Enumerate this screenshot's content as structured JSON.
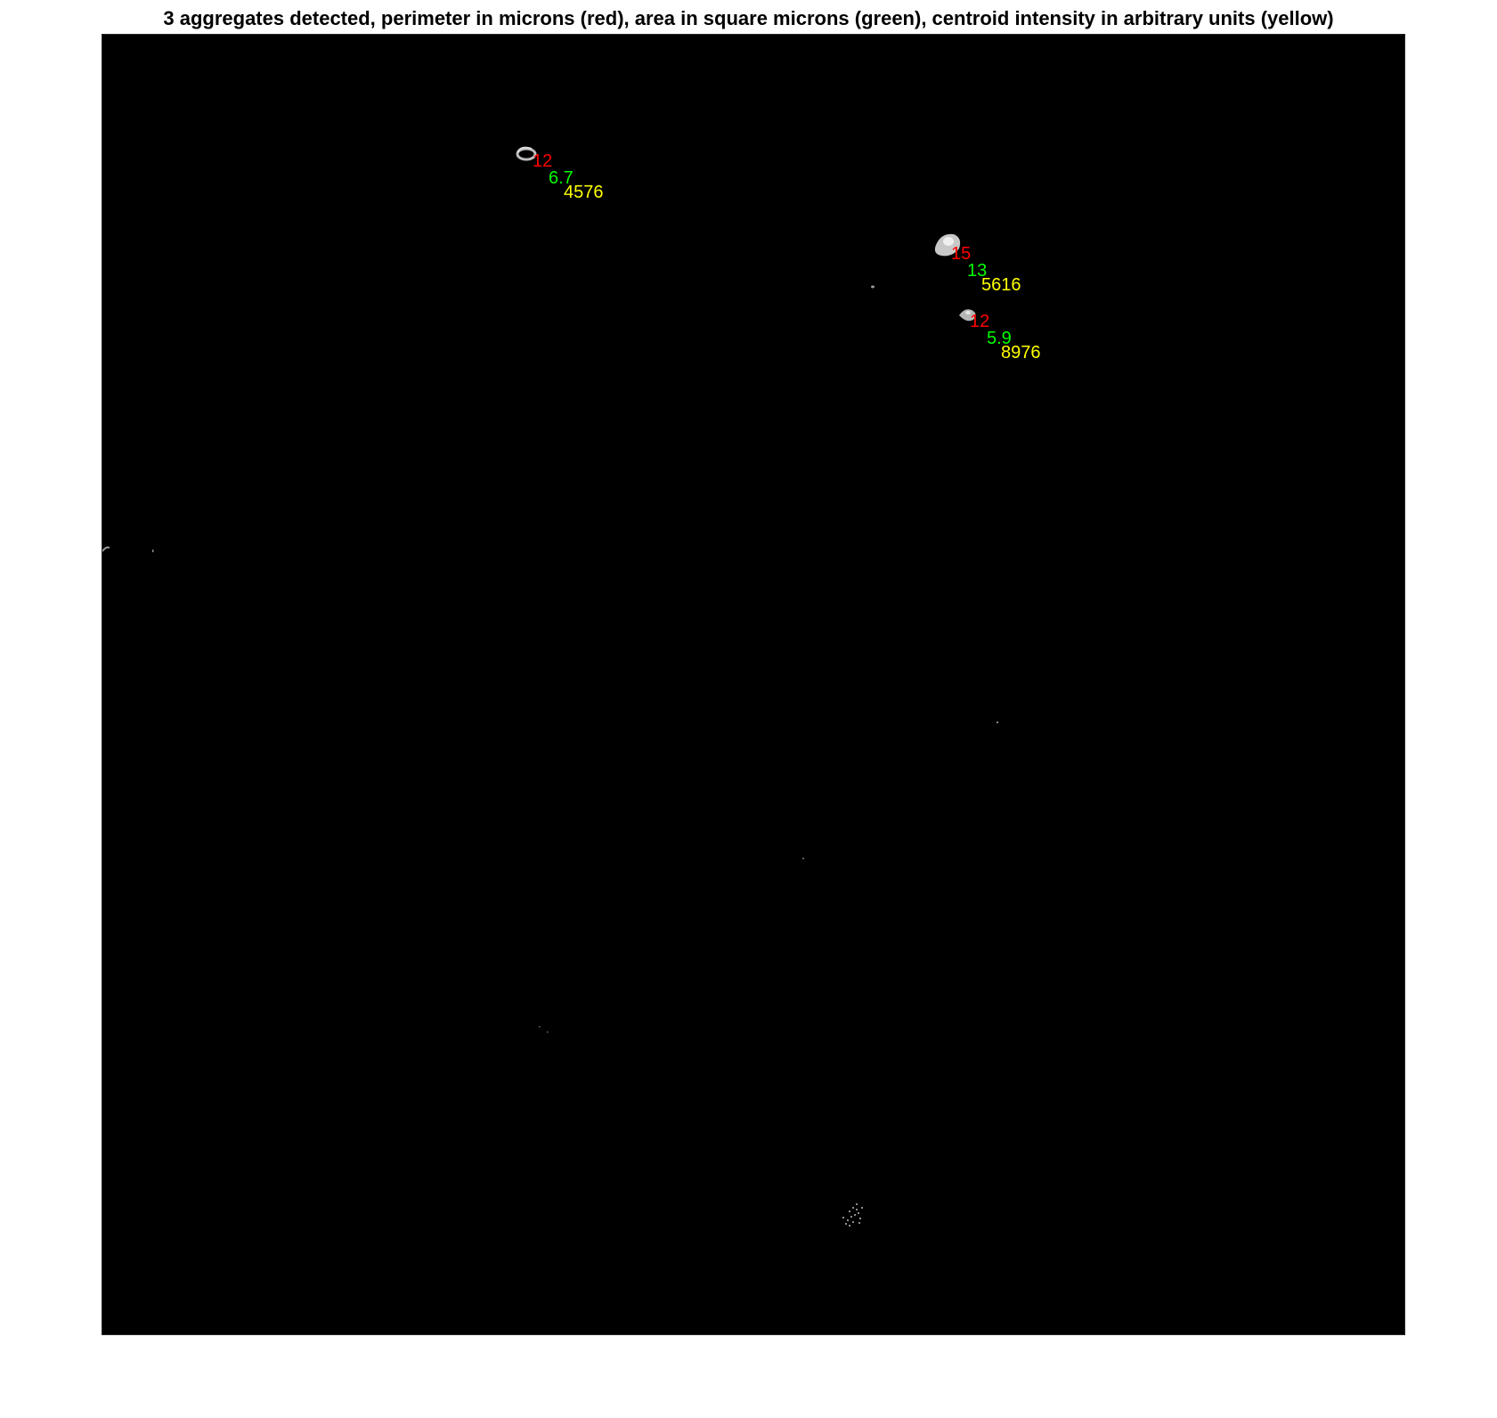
{
  "figure": {
    "title": "3 aggregates detected, perimeter in microns (red), area in square microns (green), centroid intensity in arbitrary units (yellow)"
  },
  "colors": {
    "perimeter": "#ff0000",
    "area": "#00ff00",
    "intensity": "#ffff00",
    "background": "#000000",
    "blob": "#bdbdbd"
  },
  "aggregates": [
    {
      "perimeter": "12",
      "area": "6.7",
      "intensity": "4576"
    },
    {
      "perimeter": "15",
      "area": "13",
      "intensity": "5616"
    },
    {
      "perimeter": "12",
      "area": "5.9",
      "intensity": "8976"
    }
  ]
}
